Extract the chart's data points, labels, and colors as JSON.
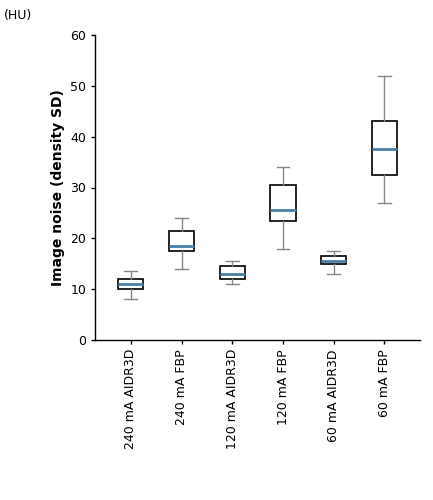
{
  "title": "",
  "ylabel": "Image noise (density SD)",
  "ylabel_extra": "(HU)",
  "ylim": [
    0,
    60
  ],
  "yticks": [
    0,
    10,
    20,
    30,
    40,
    50,
    60
  ],
  "categories": [
    "240 mA AIDR3D",
    "240 mA FBP",
    "120 mA AIDR3D",
    "120 mA FBP",
    "60 mA AIDR3D",
    "60 mA FBP"
  ],
  "boxes": [
    {
      "q1": 10.0,
      "median": 11.0,
      "q3": 12.0,
      "whislo": 8.0,
      "whishi": 13.5
    },
    {
      "q1": 17.5,
      "median": 18.5,
      "q3": 21.5,
      "whislo": 14.0,
      "whishi": 24.0
    },
    {
      "q1": 12.0,
      "median": 13.0,
      "q3": 14.5,
      "whislo": 11.0,
      "whishi": 15.5
    },
    {
      "q1": 23.5,
      "median": 25.5,
      "q3": 30.5,
      "whislo": 18.0,
      "whishi": 34.0
    },
    {
      "q1": 15.0,
      "median": 15.5,
      "q3": 16.5,
      "whislo": 13.0,
      "whishi": 17.5
    },
    {
      "q1": 32.5,
      "median": 37.5,
      "q3": 43.0,
      "whislo": 27.0,
      "whishi": 52.0
    }
  ],
  "box_facecolor": "white",
  "box_edgecolor": "black",
  "median_color": "#4a7fa5",
  "whisker_color": "#888888",
  "cap_color": "#888888",
  "background_color": "white",
  "figure_width": 4.33,
  "figure_height": 5.0,
  "dpi": 100
}
